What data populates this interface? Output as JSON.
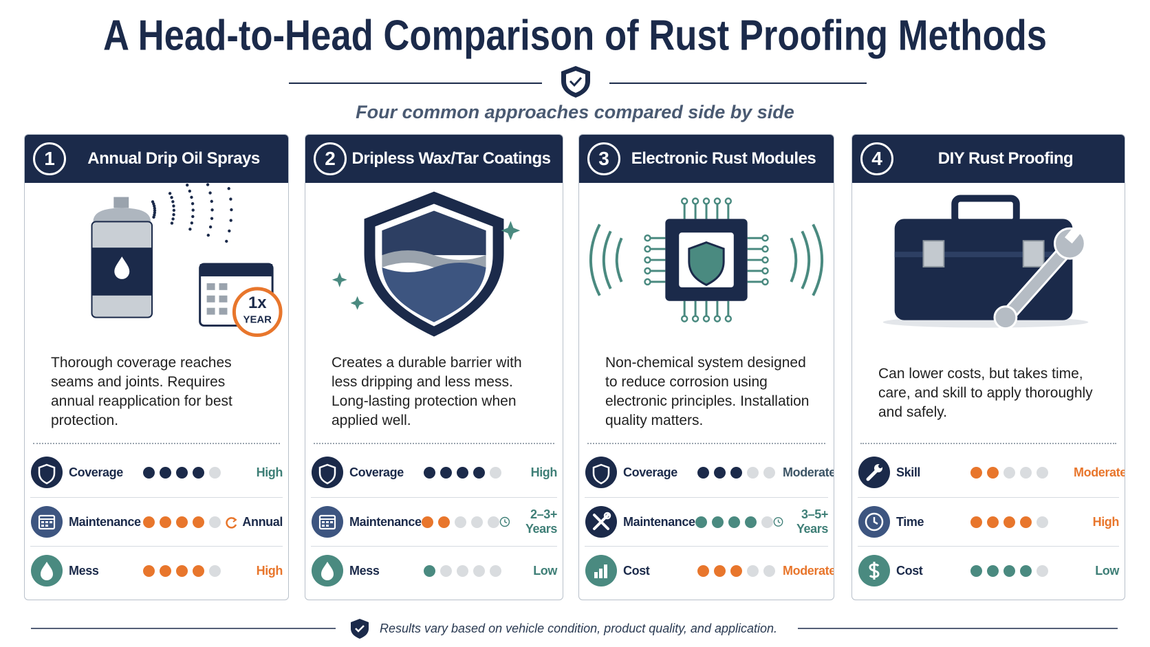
{
  "header": {
    "title": "A Head-to-Head Comparison of Rust Proofing Methods",
    "subtitle": "Four common approaches compared side by side"
  },
  "cards": [
    {
      "number": "1",
      "title": "Annual Drip Oil Sprays",
      "badge": {
        "top": "1x",
        "bottom": "YEAR"
      },
      "description": "Thorough coverage reaches seams and joints. Requires annual reapplication for best protection.",
      "ratings": [
        {
          "icon": "shield",
          "label": "Coverage",
          "filled": 4,
          "total": 5,
          "color": "#1b2a4a",
          "value": "High",
          "value_color": "#3f7f77"
        },
        {
          "icon": "calendar",
          "label": "Maintenance",
          "filled": 4,
          "total": 5,
          "color": "#e8762c",
          "value": "Annual",
          "value_color": "#1b2a4a",
          "value_icon": "refresh"
        },
        {
          "icon": "drop",
          "label": "Mess",
          "filled": 4,
          "total": 5,
          "color": "#e8762c",
          "value": "High",
          "value_color": "#e8762c"
        }
      ]
    },
    {
      "number": "2",
      "title": "Dripless Wax/Tar Coatings",
      "description": "Creates a durable barrier with less dripping and less mess. Long-lasting protection when applied well.",
      "ratings": [
        {
          "icon": "shield",
          "label": "Coverage",
          "filled": 4,
          "total": 5,
          "color": "#1b2a4a",
          "value": "High",
          "value_color": "#3f7f77"
        },
        {
          "icon": "calendar",
          "label": "Maintenance",
          "filled": 2,
          "total": 5,
          "color": "#e8762c",
          "value": "2–3+ Years",
          "value_color": "#3f7f77",
          "value_icon": "clock"
        },
        {
          "icon": "drop",
          "label": "Mess",
          "filled": 1,
          "total": 5,
          "color": "#4a8a80",
          "value": "Low",
          "value_color": "#3f7f77"
        }
      ]
    },
    {
      "number": "3",
      "title": "Electronic Rust Modules",
      "description": "Non-chemical system designed to reduce corrosion using electronic principles. Installation quality matters.",
      "ratings": [
        {
          "icon": "shield",
          "label": "Coverage",
          "filled": 3,
          "total": 5,
          "color": "#1b2a4a",
          "value": "Moderate",
          "value_color": "#3d5566"
        },
        {
          "icon": "tools",
          "label": "Maintenance",
          "filled": 4,
          "total": 5,
          "color": "#4a8a80",
          "value": "3–5+ Years",
          "value_color": "#3f7f77",
          "value_icon": "clock"
        },
        {
          "icon": "chart",
          "label": "Cost",
          "filled": 3,
          "total": 5,
          "color": "#e8762c",
          "value": "Moderate",
          "value_color": "#e8762c"
        }
      ]
    },
    {
      "number": "4",
      "title": "DIY Rust Proofing",
      "description": "Can lower costs, but takes time, care, and skill to apply thoroughly and safely.",
      "ratings": [
        {
          "icon": "wrench",
          "label": "Skill",
          "filled": 2,
          "total": 5,
          "color": "#e8762c",
          "value": "Moderate",
          "value_color": "#e8762c"
        },
        {
          "icon": "clock",
          "label": "Time",
          "filled": 4,
          "total": 5,
          "color": "#e8762c",
          "value": "High",
          "value_color": "#e8762c"
        },
        {
          "icon": "dollar",
          "label": "Cost",
          "filled": 4,
          "total": 5,
          "color": "#4a8a80",
          "value": "Low",
          "value_color": "#3f7f77"
        }
      ]
    }
  ],
  "footer": {
    "note": "Results vary based on vehicle condition, product quality, and application."
  }
}
